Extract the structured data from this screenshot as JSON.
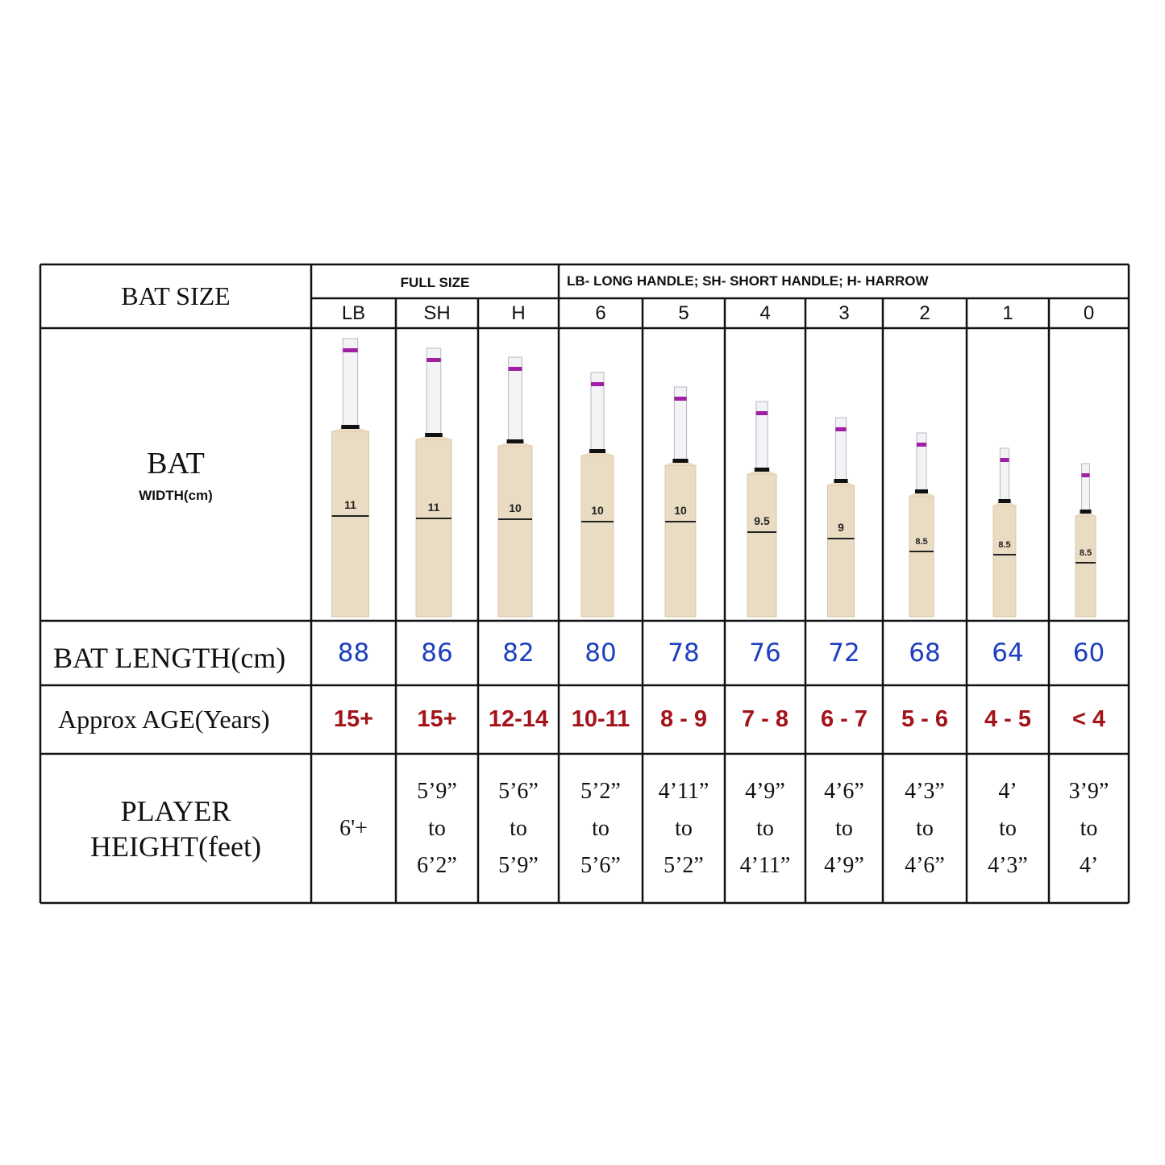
{
  "table": {
    "row_labels": {
      "bat_size": "BAT SIZE",
      "bat": "BAT",
      "width": "WIDTH(cm)",
      "bat_length": "BAT LENGTH(cm)",
      "age": "Approx AGE(Years)",
      "player_height": [
        "PLAYER",
        "HEIGHT(feet)"
      ]
    },
    "group_headers": [
      "FULL SIZE",
      "LB- LONG HANDLE; SH- SHORT HANDLE; H- HARROW"
    ],
    "sizes": [
      "LB",
      "SH",
      "H",
      "6",
      "5",
      "4",
      "3",
      "2",
      "1",
      "0"
    ],
    "widths": [
      "11",
      "11",
      "10",
      "10",
      "10",
      "9.5",
      "9",
      "8.5",
      "8.5",
      "8.5"
    ],
    "lengths": [
      "88",
      "86",
      "82",
      "80",
      "78",
      "76",
      "72",
      "68",
      "64",
      "60"
    ],
    "ages": [
      "15+",
      "15+",
      "12-14",
      "10-11",
      "8 - 9",
      "7 - 8",
      "6 - 7",
      "5 - 6",
      "4 - 5",
      "< 4"
    ],
    "heights": [
      [
        "6'+"
      ],
      [
        "5’9”",
        "to",
        "6’2”"
      ],
      [
        "5’6”",
        "to",
        "5’9”"
      ],
      [
        "5’2”",
        "to",
        "5’6”"
      ],
      [
        "4’11”",
        "to",
        "5’2”"
      ],
      [
        "4’9”",
        "to",
        "4’11”"
      ],
      [
        "4’6”",
        "to",
        "4’9”"
      ],
      [
        "4’3”",
        "to",
        "4’6”"
      ],
      [
        "4’",
        "to",
        "4’3”"
      ],
      [
        "3’9”",
        "to",
        "4’"
      ]
    ]
  }
}
